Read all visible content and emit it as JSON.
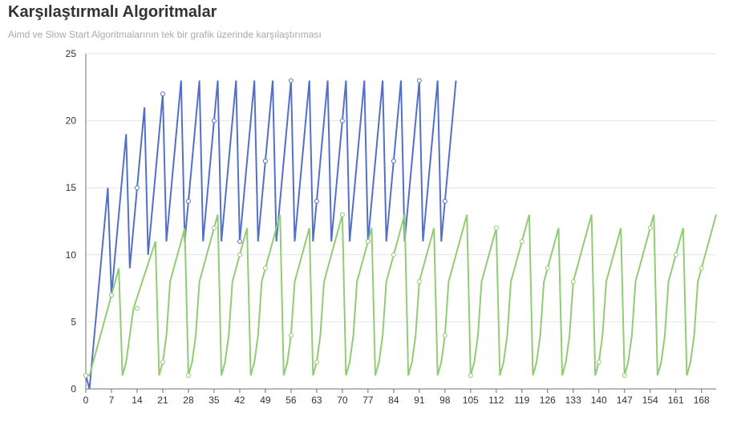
{
  "chart_data": {
    "type": "line",
    "title": "Karşılaştırmalı Algoritmalar",
    "subtitle": "Aimd ve Slow Start Algoritmalarının tek bir grafik üzerinde karşılaştırıması",
    "xlabel": "",
    "ylabel": "",
    "xlim": [
      0,
      172
    ],
    "ylim": [
      0,
      25
    ],
    "x_ticks": [
      0,
      7,
      14,
      21,
      28,
      35,
      42,
      49,
      56,
      63,
      70,
      77,
      84,
      91,
      98,
      105,
      112,
      119,
      126,
      133,
      140,
      147,
      154,
      161,
      168
    ],
    "y_ticks": [
      0,
      5,
      10,
      15,
      20,
      25
    ],
    "grid": true,
    "legend": "none",
    "colors": {
      "aimd": "#5470c6",
      "slow_start": "#91cc75",
      "axis": "#6e7079",
      "grid": "#e0e6f1"
    },
    "series": [
      {
        "key": "aimd",
        "color": "#5470c6",
        "points": [
          [
            0,
            1
          ],
          [
            1,
            0
          ],
          [
            6,
            15
          ],
          [
            7,
            7
          ],
          [
            11,
            19
          ],
          [
            12,
            9
          ],
          [
            16,
            21
          ],
          [
            17,
            10
          ],
          [
            21,
            22
          ],
          [
            22,
            11
          ],
          [
            26,
            23
          ],
          [
            27,
            11
          ],
          [
            31,
            23
          ],
          [
            32,
            11
          ],
          [
            36,
            23
          ],
          [
            37,
            11
          ],
          [
            41,
            23
          ],
          [
            42,
            11
          ],
          [
            46,
            23
          ],
          [
            47,
            11
          ],
          [
            51,
            23
          ],
          [
            52,
            11
          ],
          [
            56,
            23
          ],
          [
            57,
            11
          ],
          [
            61,
            23
          ],
          [
            62,
            11
          ],
          [
            66,
            23
          ],
          [
            67,
            11
          ],
          [
            71,
            23
          ],
          [
            72,
            11
          ],
          [
            76,
            23
          ],
          [
            77,
            11
          ],
          [
            81,
            23
          ],
          [
            82,
            11
          ],
          [
            86,
            23
          ],
          [
            87,
            11
          ],
          [
            91,
            23
          ],
          [
            92,
            11
          ],
          [
            96,
            23
          ],
          [
            97,
            11
          ],
          [
            101,
            23
          ]
        ],
        "markers": [
          [
            0,
            1
          ],
          [
            7,
            7
          ],
          [
            14,
            15
          ],
          [
            21,
            22
          ],
          [
            28,
            14
          ],
          [
            35,
            20
          ],
          [
            42,
            11
          ],
          [
            49,
            17
          ],
          [
            56,
            23
          ],
          [
            63,
            14
          ],
          [
            70,
            20
          ],
          [
            77,
            11
          ],
          [
            84,
            17
          ],
          [
            91,
            23
          ],
          [
            98,
            14
          ]
        ]
      },
      {
        "key": "slow_start",
        "color": "#91cc75",
        "points": [
          [
            0,
            1
          ],
          [
            1,
            1
          ],
          [
            9,
            9
          ],
          [
            10,
            1
          ],
          [
            11,
            2
          ],
          [
            12,
            4
          ],
          [
            13,
            6
          ],
          [
            19,
            11
          ],
          [
            20,
            1
          ],
          [
            21,
            2
          ],
          [
            22,
            4
          ],
          [
            23,
            8
          ],
          [
            27,
            12
          ],
          [
            28,
            1
          ],
          [
            29,
            2
          ],
          [
            30,
            4
          ],
          [
            31,
            8
          ],
          [
            36,
            13
          ],
          [
            37,
            1
          ],
          [
            38,
            2
          ],
          [
            39,
            4
          ],
          [
            40,
            8
          ],
          [
            44,
            12
          ],
          [
            45,
            1
          ],
          [
            46,
            2
          ],
          [
            47,
            4
          ],
          [
            48,
            8
          ],
          [
            53,
            13
          ],
          [
            54,
            1
          ],
          [
            55,
            2
          ],
          [
            56,
            4
          ],
          [
            57,
            8
          ],
          [
            61,
            12
          ],
          [
            62,
            1
          ],
          [
            63,
            2
          ],
          [
            64,
            4
          ],
          [
            65,
            8
          ],
          [
            70,
            13
          ],
          [
            71,
            1
          ],
          [
            72,
            2
          ],
          [
            73,
            4
          ],
          [
            74,
            8
          ],
          [
            78,
            12
          ],
          [
            79,
            1
          ],
          [
            80,
            2
          ],
          [
            81,
            4
          ],
          [
            82,
            8
          ],
          [
            87,
            13
          ],
          [
            88,
            1
          ],
          [
            89,
            2
          ],
          [
            90,
            4
          ],
          [
            91,
            8
          ],
          [
            95,
            12
          ],
          [
            96,
            1
          ],
          [
            97,
            2
          ],
          [
            98,
            4
          ],
          [
            99,
            8
          ],
          [
            104,
            13
          ],
          [
            105,
            1
          ],
          [
            106,
            2
          ],
          [
            107,
            4
          ],
          [
            108,
            8
          ],
          [
            112,
            12
          ],
          [
            113,
            1
          ],
          [
            114,
            2
          ],
          [
            115,
            4
          ],
          [
            116,
            8
          ],
          [
            121,
            13
          ],
          [
            122,
            1
          ],
          [
            123,
            2
          ],
          [
            124,
            4
          ],
          [
            125,
            8
          ],
          [
            129,
            12
          ],
          [
            130,
            1
          ],
          [
            131,
            2
          ],
          [
            132,
            4
          ],
          [
            133,
            8
          ],
          [
            138,
            13
          ],
          [
            139,
            1
          ],
          [
            140,
            2
          ],
          [
            141,
            4
          ],
          [
            142,
            8
          ],
          [
            146,
            12
          ],
          [
            147,
            1
          ],
          [
            148,
            2
          ],
          [
            149,
            4
          ],
          [
            150,
            8
          ],
          [
            155,
            13
          ],
          [
            156,
            1
          ],
          [
            157,
            2
          ],
          [
            158,
            4
          ],
          [
            159,
            8
          ],
          [
            163,
            12
          ],
          [
            164,
            1
          ],
          [
            165,
            2
          ],
          [
            166,
            4
          ],
          [
            167,
            8
          ],
          [
            172,
            13
          ]
        ],
        "markers": [
          [
            0,
            1
          ],
          [
            7,
            7
          ],
          [
            14,
            6
          ],
          [
            21,
            2
          ],
          [
            28,
            1
          ],
          [
            35,
            12
          ],
          [
            42,
            10
          ],
          [
            49,
            9
          ],
          [
            56,
            4
          ],
          [
            63,
            2
          ],
          [
            70,
            13
          ],
          [
            77,
            11
          ],
          [
            84,
            10
          ],
          [
            91,
            8
          ],
          [
            98,
            4
          ],
          [
            105,
            1
          ],
          [
            112,
            12
          ],
          [
            119,
            11
          ],
          [
            126,
            9
          ],
          [
            133,
            8
          ],
          [
            140,
            2
          ],
          [
            147,
            1
          ],
          [
            154,
            12
          ],
          [
            161,
            10
          ],
          [
            168,
            9
          ]
        ]
      }
    ]
  }
}
